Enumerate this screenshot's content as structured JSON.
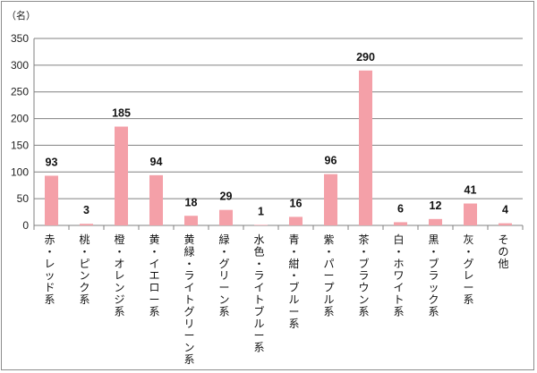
{
  "chart_data": {
    "type": "bar",
    "unit_label": "（名）",
    "categories": [
      "赤・レッド系",
      "桃・ピンク系",
      "橙・オレンジ系",
      "黄・イエロー系",
      "黄緑・ライトグリーン系",
      "緑・グリーン系",
      "水色・ライトブルー系",
      "青・紺・ブルー系",
      "紫・パープル系",
      "茶・ブラウン系",
      "白・ホワイト系",
      "黒・ブラック系",
      "灰・グレー系",
      "その他"
    ],
    "values": [
      93,
      3,
      185,
      94,
      18,
      29,
      1,
      16,
      96,
      290,
      6,
      12,
      41,
      4
    ],
    "ylim": [
      0,
      350
    ],
    "yticks": [
      0,
      50,
      100,
      150,
      200,
      250,
      300,
      350
    ],
    "grid": true,
    "bar_color": "#f4a0a8",
    "grid_color": "#808080"
  }
}
